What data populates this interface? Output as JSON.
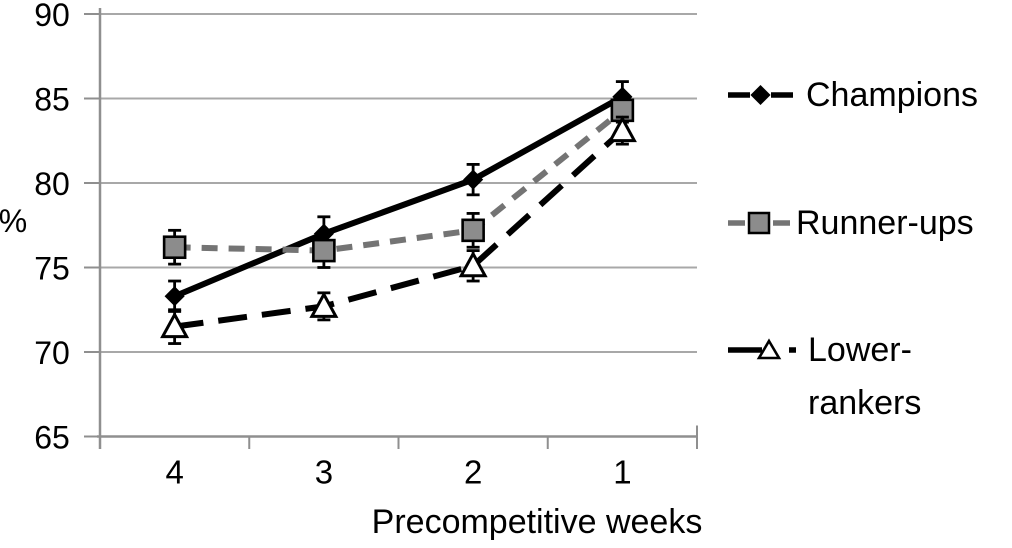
{
  "page": {
    "background": "#ffffff"
  },
  "chart_data": {
    "type": "line",
    "title": "",
    "xlabel": "Precompetitive weeks",
    "ylabel": "%",
    "categories": [
      "4",
      "3",
      "2",
      "1"
    ],
    "ylim": [
      65,
      90
    ],
    "yticks": [
      90,
      85,
      80,
      75,
      70,
      65
    ],
    "yticklabels": [
      "90",
      "85",
      "80",
      "75",
      "70",
      "65"
    ],
    "grid": true,
    "legend_position": "right",
    "grid_color": "#a8a8a8",
    "axis_color": "#8f8f8f",
    "error_bar_color": "#000000",
    "series": [
      {
        "name": "Champions",
        "values": [
          73.3,
          77.0,
          80.2,
          85.1
        ],
        "errors": [
          0.9,
          1.0,
          0.9,
          0.9
        ],
        "line_color": "#000000",
        "line_style": "solid",
        "marker": "diamond",
        "marker_fill": "#000000",
        "marker_stroke": "#000000"
      },
      {
        "name": "Runner-ups",
        "values": [
          76.2,
          76.0,
          77.2,
          84.3
        ],
        "errors": [
          1.0,
          1.0,
          1.0,
          0.7
        ],
        "line_color": "#747474",
        "line_style": "dashed",
        "marker": "square",
        "marker_fill": "#8c8c8c",
        "marker_stroke": "#000000"
      },
      {
        "name": "Lower-rankers",
        "values": [
          71.5,
          72.7,
          75.1,
          83.1
        ],
        "errors": [
          1.0,
          0.8,
          0.9,
          0.8
        ],
        "line_color": "#000000",
        "line_style": "long-dash",
        "marker": "triangle-up",
        "marker_fill": "#ffffff",
        "marker_stroke": "#000000"
      }
    ],
    "legend": [
      {
        "series": "Champions",
        "lines": [
          "Champions"
        ]
      },
      {
        "series": "Runner-ups",
        "lines": [
          "Runner-ups"
        ]
      },
      {
        "series": "Lower-rankers",
        "lines": [
          "Lower-",
          "rankers"
        ]
      }
    ]
  }
}
